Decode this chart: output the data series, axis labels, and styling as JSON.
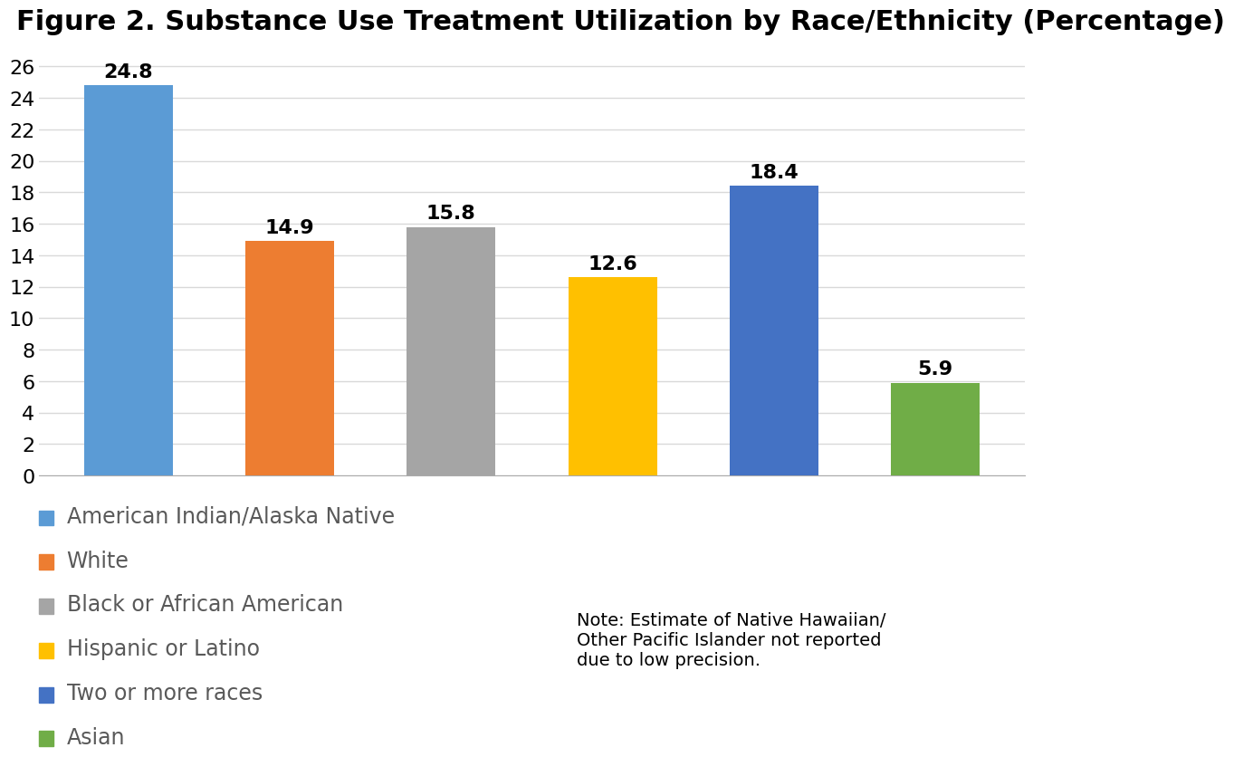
{
  "title": "Figure 2. Substance Use Treatment Utilization by Race/Ethnicity (Percentage)",
  "categories": [
    "American Indian/Alaska Native",
    "White",
    "Black or African American",
    "Hispanic or Latino",
    "Two or more races",
    "Asian"
  ],
  "values": [
    24.8,
    14.9,
    15.8,
    12.6,
    18.4,
    5.9
  ],
  "bar_colors": [
    "#5B9BD5",
    "#ED7D31",
    "#A5A5A5",
    "#FFC000",
    "#4472C4",
    "#70AD47"
  ],
  "ylim": [
    0,
    27
  ],
  "yticks": [
    0,
    2,
    4,
    6,
    8,
    10,
    12,
    14,
    16,
    18,
    20,
    22,
    24,
    26
  ],
  "background_color": "#FFFFFF",
  "title_fontsize": 22,
  "bar_label_fontsize": 16,
  "ytick_fontsize": 16,
  "legend_fontsize": 17,
  "legend_text_color": "#595959",
  "grid_color": "#D9D9D9",
  "note_text": "Note: Estimate of Native Hawaiian/\nOther Pacific Islander not reported\ndue to low precision.",
  "note_fontsize": 14,
  "bar_width": 0.55
}
